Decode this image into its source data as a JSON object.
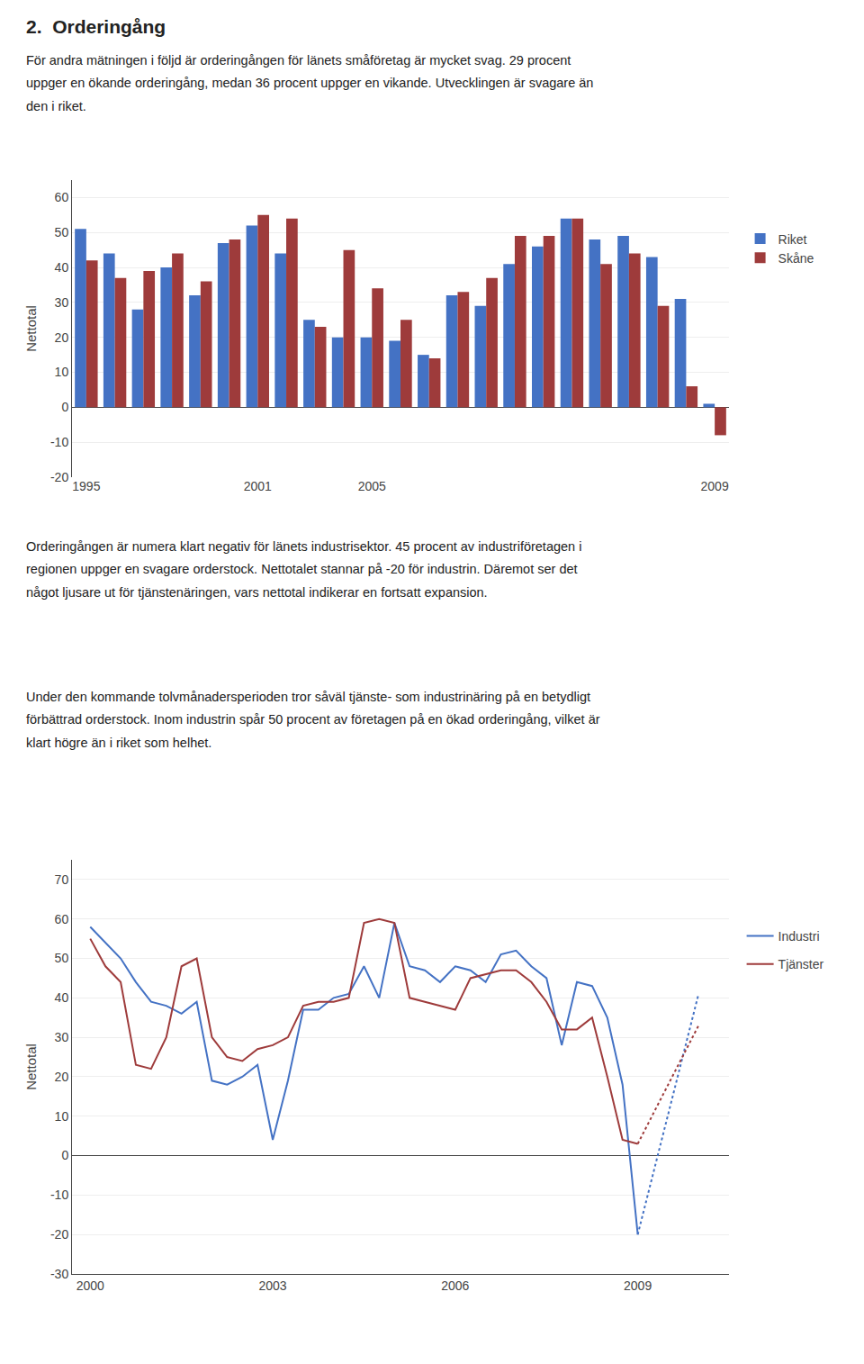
{
  "title": "2.  Orderingång",
  "annotations": [
    "För andra mätningen i följd är orderingången för länets småföretag är mycket svag. 29 procent\nuppger en ökande orderingång, medan 36 procent uppger en vikande. Utvecklingen är svagare än\nden i riket.",
    "Orderingången är numera klart negativ för länets industrisektor. 45 procent av industriföretagen i\nregionen uppger en svagare orderstock. Nettotalet stannar på -20 för industrin. Däremot ser det\nnågot ljusare ut för tjänstenäringen, vars nettotal indikerar en fortsatt expansion.",
    "Under den kommande tolvmånadersperioden tror såväl tjänste- som industrinäring på en betydligt\nförbättrad orderstock. Inom industrin spår 50 procent av företagen på en ökad orderingång, vilket är\nklart högre än i riket som helhet."
  ],
  "chart_data": [
    {
      "type": "bar",
      "y_label": "Nettotal",
      "categories": [
        "1995",
        null,
        null,
        null,
        null,
        null,
        "2001",
        null,
        null,
        null,
        "2005",
        null,
        null,
        null,
        null,
        null,
        null,
        null,
        null,
        null,
        null,
        null,
        "2009"
      ],
      "series": [
        {
          "name": "Riket",
          "color": "#4472C4",
          "values": [
            51,
            44,
            28,
            40,
            32,
            47,
            52,
            44,
            25,
            20,
            20,
            19,
            15,
            32,
            29,
            41,
            46,
            54,
            48,
            49,
            43,
            31,
            1
          ]
        },
        {
          "name": "Skåne",
          "color": "#9E3B3B",
          "values": [
            42,
            37,
            39,
            44,
            36,
            48,
            55,
            54,
            23,
            45,
            34,
            25,
            14,
            33,
            37,
            49,
            49,
            54,
            41,
            44,
            29,
            6,
            -8
          ]
        }
      ],
      "ylim": [
        -20,
        65
      ],
      "yticks": [
        -20,
        -10,
        0,
        10,
        20,
        30,
        40,
        50,
        60
      ],
      "grid": true,
      "legend": "right"
    },
    {
      "type": "line",
      "y_label": "Nettotal",
      "x": [
        2000.0,
        2000.25,
        2000.5,
        2000.75,
        2001.0,
        2001.25,
        2001.5,
        2001.75,
        2002.0,
        2002.25,
        2002.5,
        2002.75,
        2003.0,
        2003.25,
        2003.5,
        2003.75,
        2004.0,
        2004.25,
        2004.5,
        2004.75,
        2005.0,
        2005.25,
        2005.5,
        2005.75,
        2006.0,
        2006.25,
        2006.5,
        2006.75,
        2007.0,
        2007.25,
        2007.5,
        2007.75,
        2008.0,
        2008.25,
        2008.5,
        2008.75,
        2009.0,
        2009.25,
        2009.5,
        2009.75,
        2010.0
      ],
      "series": [
        {
          "name": "Industri",
          "color": "#4472C4",
          "values": [
            58,
            54,
            50,
            44,
            39,
            38,
            36,
            39,
            19,
            18,
            20,
            23,
            4,
            19,
            37,
            37,
            40,
            41,
            48,
            40,
            59,
            48,
            47,
            44,
            48,
            47,
            44,
            51,
            52,
            48,
            45,
            28,
            44,
            43,
            35,
            18,
            -20,
            null,
            null,
            null,
            41
          ]
        },
        {
          "name": "Tjänster",
          "color": "#9E3B3B",
          "values": [
            55,
            48,
            44,
            23,
            22,
            30,
            48,
            50,
            30,
            25,
            24,
            27,
            28,
            30,
            38,
            39,
            39,
            40,
            59,
            60,
            59,
            40,
            39,
            38,
            37,
            45,
            46,
            47,
            47,
            44,
            39,
            32,
            32,
            35,
            20,
            4,
            3,
            null,
            null,
            null,
            33
          ]
        }
      ],
      "xlim": [
        1999.7,
        2010.5
      ],
      "xticks": [
        2000,
        2003,
        2006,
        2009
      ],
      "ylim": [
        -30,
        75
      ],
      "yticks": [
        -30,
        -20,
        -10,
        0,
        10,
        20,
        30,
        40,
        50,
        60,
        70
      ],
      "grid": true,
      "legend": "right"
    }
  ]
}
